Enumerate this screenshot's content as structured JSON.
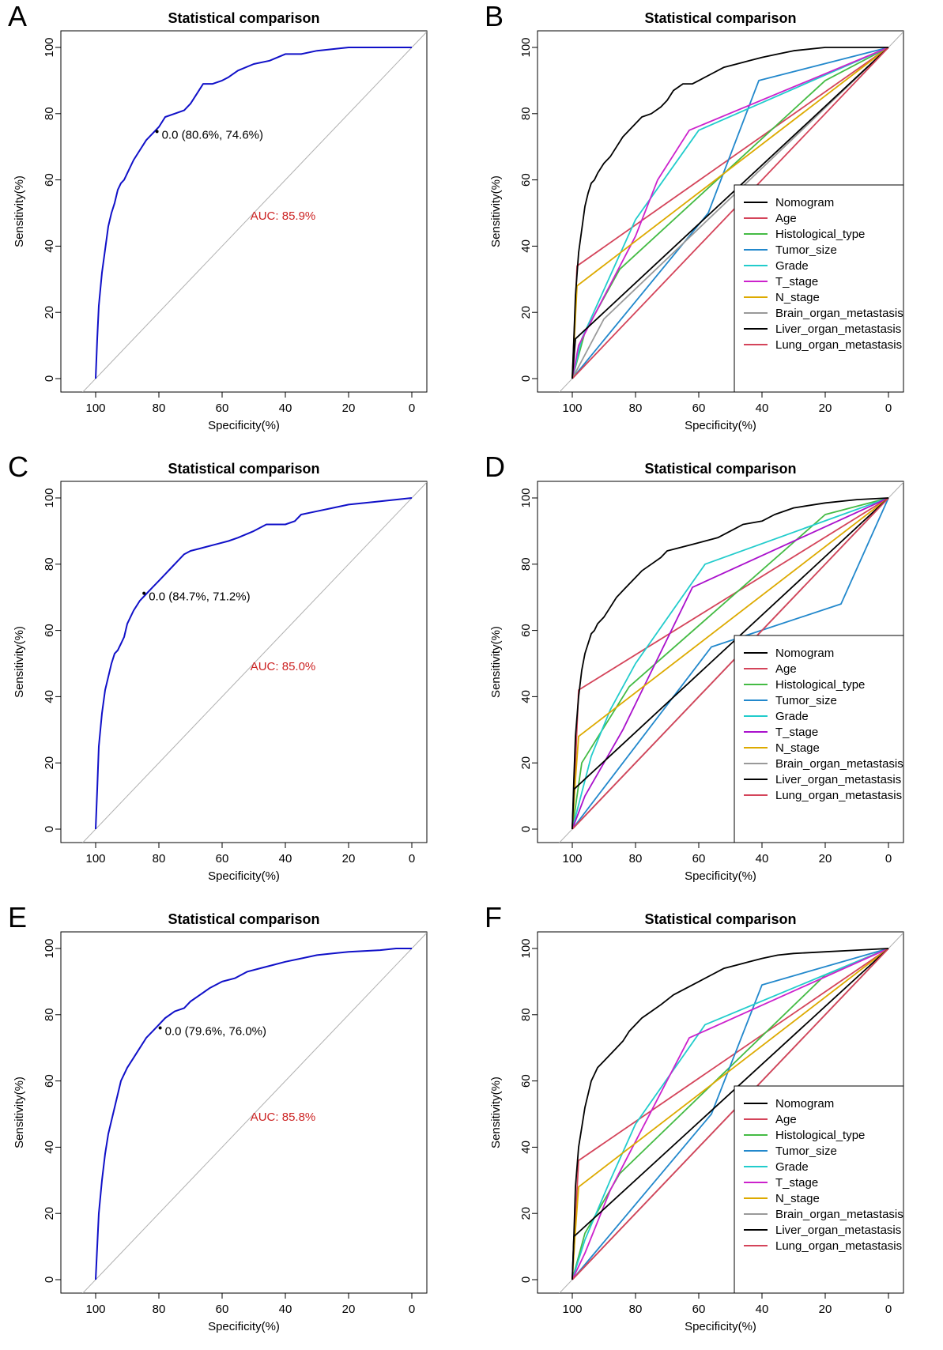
{
  "figure": {
    "panels": [
      "A",
      "B",
      "C",
      "D",
      "E",
      "F"
    ]
  },
  "chart_data": [
    {
      "panel": "A",
      "type": "line",
      "title": "Statistical comparison",
      "xlabel": "Specificity(%)",
      "ylabel": "Sensitivity(%)",
      "xlim": [
        110,
        -10
      ],
      "ylim": [
        0,
        100
      ],
      "xticks": [
        100,
        80,
        60,
        40,
        20,
        0
      ],
      "yticks": [
        0,
        20,
        40,
        60,
        80,
        100
      ],
      "diagonal": true,
      "series": [
        {
          "name": "Nomogram",
          "color": "#1010c8",
          "x": [
            100,
            99.5,
            99,
            98,
            97,
            96,
            95,
            94,
            93,
            92,
            91,
            90,
            88,
            86,
            84,
            82,
            80,
            78,
            75,
            72,
            70,
            68,
            66,
            63,
            60,
            58,
            55,
            50,
            45,
            40,
            35,
            30,
            20,
            10,
            0
          ],
          "y": [
            0,
            12,
            22,
            32,
            39,
            46,
            50,
            53,
            57,
            59,
            60,
            62,
            66,
            69,
            72,
            74,
            76,
            79,
            80,
            81,
            83,
            86,
            89,
            89,
            90,
            91,
            93,
            95,
            96,
            98,
            98,
            99,
            100,
            100,
            100
          ]
        }
      ],
      "annotation": {
        "text": "0.0 (80.6%, 74.6%)",
        "x": 80.6,
        "y": 74.6
      },
      "auc": {
        "text": "AUC: 85.9%",
        "color": "#cc2222"
      }
    },
    {
      "panel": "B",
      "type": "line",
      "title": "Statistical comparison",
      "xlabel": "Specificity(%)",
      "ylabel": "Sensitivity(%)",
      "xlim": [
        110,
        -10
      ],
      "ylim": [
        0,
        100
      ],
      "xticks": [
        100,
        80,
        60,
        40,
        20,
        0
      ],
      "yticks": [
        0,
        20,
        40,
        60,
        80,
        100
      ],
      "diagonal": true,
      "legend_position": "bottom-right",
      "series": [
        {
          "name": "Nomogram",
          "color": "#000000",
          "x": [
            100,
            99.5,
            99,
            98,
            97,
            96,
            95,
            94,
            93,
            92,
            90,
            88,
            86,
            84,
            82,
            80,
            78,
            75,
            72,
            70,
            68,
            65,
            62,
            60,
            56,
            52,
            48,
            44,
            40,
            35,
            30,
            20,
            10,
            0
          ],
          "y": [
            0,
            12,
            25,
            38,
            45,
            52,
            56,
            59,
            60,
            62,
            65,
            67,
            70,
            73,
            75,
            77,
            79,
            80,
            82,
            84,
            87,
            89,
            89,
            90,
            92,
            94,
            95,
            96,
            97,
            98,
            99,
            100,
            100,
            100
          ]
        },
        {
          "name": "Age",
          "color": "#d4445a",
          "x": [
            100,
            98.5,
            0
          ],
          "y": [
            0,
            34,
            100
          ]
        },
        {
          "name": "Histological_type",
          "color": "#44bb44",
          "x": [
            100,
            96,
            85,
            20,
            0
          ],
          "y": [
            0,
            14,
            33,
            90,
            100
          ]
        },
        {
          "name": "Tumor_size",
          "color": "#2288cc",
          "x": [
            100,
            57,
            41,
            0
          ],
          "y": [
            0,
            50,
            90,
            100
          ]
        },
        {
          "name": "Grade",
          "color": "#22cccc",
          "x": [
            100,
            97,
            80,
            60,
            0
          ],
          "y": [
            0,
            12,
            48,
            75,
            100
          ]
        },
        {
          "name": "T_stage",
          "color": "#cc22cc",
          "x": [
            100,
            98,
            80,
            73,
            63,
            0
          ],
          "y": [
            0,
            10,
            43,
            60,
            75,
            100
          ]
        },
        {
          "name": "N_stage",
          "color": "#ddaa00",
          "x": [
            100,
            98.5,
            0
          ],
          "y": [
            0,
            28,
            100
          ]
        },
        {
          "name": "Brain_organ_metastasis",
          "color": "#999999",
          "x": [
            100,
            90,
            0
          ],
          "y": [
            0,
            18,
            100
          ]
        },
        {
          "name": "Liver_organ_metastasis",
          "color": "#000000",
          "x": [
            100,
            99,
            0
          ],
          "y": [
            0,
            12,
            100
          ]
        },
        {
          "name": "Lung_organ_metastasis",
          "color": "#d4445a",
          "x": [
            100,
            0
          ],
          "y": [
            0,
            100
          ]
        }
      ]
    },
    {
      "panel": "C",
      "type": "line",
      "title": "Statistical comparison",
      "xlabel": "Specificity(%)",
      "ylabel": "Sensitivity(%)",
      "xlim": [
        110,
        -10
      ],
      "ylim": [
        0,
        100
      ],
      "xticks": [
        100,
        80,
        60,
        40,
        20,
        0
      ],
      "yticks": [
        0,
        20,
        40,
        60,
        80,
        100
      ],
      "diagonal": true,
      "series": [
        {
          "name": "Nomogram",
          "color": "#1010c8",
          "x": [
            100,
            99.5,
            99,
            98,
            97,
            96,
            95,
            94,
            93,
            92,
            91,
            90,
            88,
            86,
            84,
            82,
            80,
            78,
            76,
            74,
            72,
            70,
            66,
            62,
            58,
            55,
            50,
            46,
            40,
            37,
            35,
            30,
            25,
            20,
            10,
            5,
            0
          ],
          "y": [
            0,
            12,
            25,
            35,
            42,
            46,
            50,
            53,
            54,
            56,
            58,
            62,
            66,
            69,
            71,
            73,
            75,
            77,
            79,
            81,
            83,
            84,
            85,
            86,
            87,
            88,
            90,
            92,
            92,
            93,
            95,
            96,
            97,
            98,
            99,
            99.5,
            100
          ]
        }
      ],
      "annotation": {
        "text": "0.0 (84.7%, 71.2%)",
        "x": 84.7,
        "y": 71.2
      },
      "auc": {
        "text": "AUC: 85.0%",
        "color": "#cc2222"
      }
    },
    {
      "panel": "D",
      "type": "line",
      "title": "Statistical comparison",
      "xlabel": "Specificity(%)",
      "ylabel": "Sensitivity(%)",
      "xlim": [
        110,
        -10
      ],
      "ylim": [
        0,
        100
      ],
      "xticks": [
        100,
        80,
        60,
        40,
        20,
        0
      ],
      "yticks": [
        0,
        20,
        40,
        60,
        80,
        100
      ],
      "diagonal": true,
      "legend_position": "bottom-right",
      "series": [
        {
          "name": "Nomogram",
          "color": "#000000",
          "x": [
            100,
            99.5,
            99,
            98,
            97,
            96,
            95,
            94,
            93,
            92,
            90,
            88,
            86,
            84,
            82,
            80,
            78,
            75,
            72,
            70,
            66,
            62,
            58,
            54,
            50,
            46,
            40,
            36,
            30,
            20,
            10,
            0
          ],
          "y": [
            0,
            15,
            28,
            40,
            48,
            53,
            56,
            59,
            60,
            62,
            64,
            67,
            70,
            72,
            74,
            76,
            78,
            80,
            82,
            84,
            85,
            86,
            87,
            88,
            90,
            92,
            93,
            95,
            97,
            98.5,
            99.5,
            100
          ]
        },
        {
          "name": "Age",
          "color": "#d4445a",
          "x": [
            100,
            99,
            98,
            0
          ],
          "y": [
            0,
            20,
            42,
            100
          ]
        },
        {
          "name": "Histological_type",
          "color": "#44bb44",
          "x": [
            100,
            97,
            82,
            20,
            0
          ],
          "y": [
            0,
            20,
            43,
            95,
            100
          ]
        },
        {
          "name": "Tumor_size",
          "color": "#2288cc",
          "x": [
            100,
            56,
            15,
            0
          ],
          "y": [
            0,
            55,
            68,
            100
          ]
        },
        {
          "name": "Grade",
          "color": "#22cccc",
          "x": [
            100,
            94,
            88,
            80,
            58,
            0
          ],
          "y": [
            0,
            22,
            36,
            50,
            80,
            100
          ]
        },
        {
          "name": "T_stage",
          "color": "#aa11cc",
          "x": [
            100,
            96,
            84,
            62,
            0
          ],
          "y": [
            0,
            10,
            30,
            73,
            100
          ]
        },
        {
          "name": "N_stage",
          "color": "#ddaa00",
          "x": [
            100,
            99,
            98,
            0
          ],
          "y": [
            0,
            15,
            28,
            100
          ]
        },
        {
          "name": "Brain_organ_metastasis",
          "color": "#999999",
          "x": [
            100,
            0
          ],
          "y": [
            0,
            100
          ]
        },
        {
          "name": "Liver_organ_metastasis",
          "color": "#000000",
          "x": [
            100,
            99.5,
            0
          ],
          "y": [
            0,
            12,
            100
          ]
        },
        {
          "name": "Lung_organ_metastasis",
          "color": "#d4445a",
          "x": [
            100,
            0
          ],
          "y": [
            0,
            100
          ]
        }
      ]
    },
    {
      "panel": "E",
      "type": "line",
      "title": "Statistical comparison",
      "xlabel": "Specificity(%)",
      "ylabel": "Sensitivity(%)",
      "xlim": [
        110,
        -10
      ],
      "ylim": [
        0,
        100
      ],
      "xticks": [
        100,
        80,
        60,
        40,
        20,
        0
      ],
      "yticks": [
        0,
        20,
        40,
        60,
        80,
        100
      ],
      "diagonal": true,
      "series": [
        {
          "name": "Nomogram",
          "color": "#1010c8",
          "x": [
            100,
            99.5,
            99,
            98,
            97,
            96,
            95,
            94,
            93,
            92,
            91,
            90,
            88,
            86,
            84,
            82,
            80,
            78,
            75,
            72,
            70,
            67,
            64,
            60,
            56,
            52,
            48,
            44,
            40,
            35,
            30,
            25,
            20,
            10,
            5,
            0
          ],
          "y": [
            0,
            10,
            20,
            30,
            38,
            44,
            48,
            52,
            56,
            60,
            62,
            64,
            67,
            70,
            73,
            75,
            77,
            79,
            81,
            82,
            84,
            86,
            88,
            90,
            91,
            93,
            94,
            95,
            96,
            97,
            98,
            98.5,
            99,
            99.5,
            100,
            100
          ]
        }
      ],
      "annotation": {
        "text": "0.0 (79.6%, 76.0%)",
        "x": 79.6,
        "y": 76.0
      },
      "auc": {
        "text": "AUC: 85.8%",
        "color": "#cc2222"
      }
    },
    {
      "panel": "F",
      "type": "line",
      "title": "Statistical comparison",
      "xlabel": "Specificity(%)",
      "ylabel": "Sensitivity(%)",
      "xlim": [
        110,
        -10
      ],
      "ylim": [
        0,
        100
      ],
      "xticks": [
        100,
        80,
        60,
        40,
        20,
        0
      ],
      "yticks": [
        0,
        20,
        40,
        60,
        80,
        100
      ],
      "diagonal": true,
      "legend_position": "bottom-right",
      "series": [
        {
          "name": "Nomogram",
          "color": "#000000",
          "x": [
            100,
            99.5,
            99,
            98,
            97,
            96,
            95,
            94,
            93,
            92,
            90,
            88,
            86,
            84,
            82,
            80,
            78,
            75,
            72,
            68,
            64,
            60,
            56,
            52,
            48,
            44,
            40,
            35,
            30,
            20,
            10,
            0
          ],
          "y": [
            0,
            13,
            28,
            40,
            46,
            52,
            56,
            60,
            62,
            64,
            66,
            68,
            70,
            72,
            75,
            77,
            79,
            81,
            83,
            86,
            88,
            90,
            92,
            94,
            95,
            96,
            97,
            98,
            98.5,
            99,
            99.5,
            100
          ]
        },
        {
          "name": "Age",
          "color": "#d4445a",
          "x": [
            100,
            99,
            98,
            0
          ],
          "y": [
            0,
            18,
            36,
            100
          ]
        },
        {
          "name": "Histological_type",
          "color": "#44bb44",
          "x": [
            100,
            96,
            85,
            20,
            0
          ],
          "y": [
            0,
            14,
            32,
            92,
            100
          ]
        },
        {
          "name": "Tumor_size",
          "color": "#2288cc",
          "x": [
            100,
            56,
            40,
            0
          ],
          "y": [
            0,
            50,
            89,
            100
          ]
        },
        {
          "name": "Grade",
          "color": "#22cccc",
          "x": [
            100,
            96,
            88,
            80,
            58,
            0
          ],
          "y": [
            0,
            12,
            30,
            47,
            77,
            100
          ]
        },
        {
          "name": "T_stage",
          "color": "#cc22cc",
          "x": [
            100,
            96,
            88,
            63,
            0
          ],
          "y": [
            0,
            8,
            27,
            73,
            100
          ]
        },
        {
          "name": "N_stage",
          "color": "#ddaa00",
          "x": [
            100,
            99,
            98,
            0
          ],
          "y": [
            0,
            15,
            28,
            100
          ]
        },
        {
          "name": "Brain_organ_metastasis",
          "color": "#999999",
          "x": [
            100,
            0
          ],
          "y": [
            0,
            100
          ]
        },
        {
          "name": "Liver_organ_metastasis",
          "color": "#000000",
          "x": [
            100,
            99.5,
            0
          ],
          "y": [
            0,
            13,
            100
          ]
        },
        {
          "name": "Lung_organ_metastasis",
          "color": "#d4445a",
          "x": [
            100,
            0
          ],
          "y": [
            0,
            100
          ]
        }
      ]
    }
  ]
}
